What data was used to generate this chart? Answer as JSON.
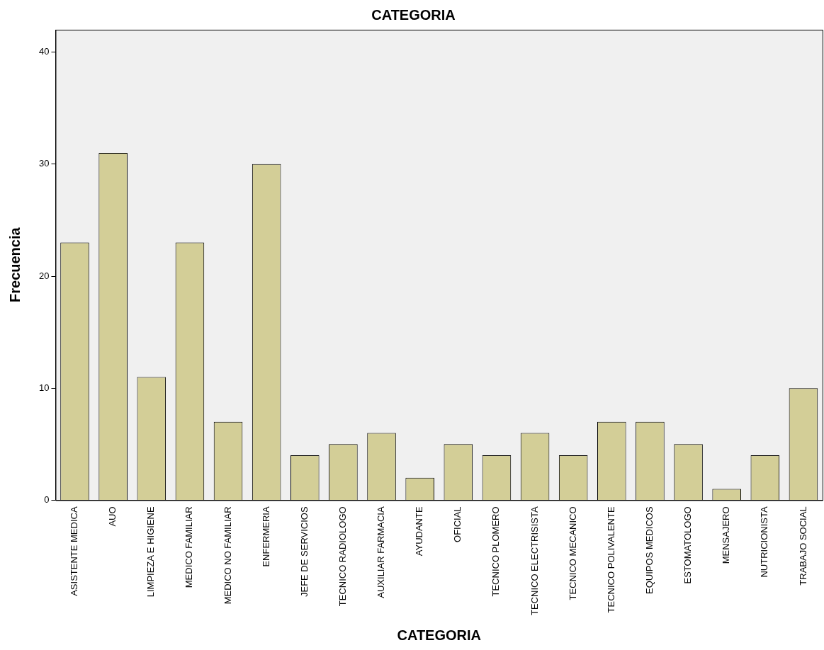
{
  "chart_data": {
    "type": "bar",
    "title": "CATEGORIA",
    "xlabel": "CATEGORIA",
    "ylabel": "Frecuencia",
    "categories": [
      "ASISTENTE MEDICA",
      "AUO",
      "LIMPIEZA E HIGIENE",
      "MEDICO FAMILIAR",
      "MEDICO NO FAMILIAR",
      "ENFERMERIA",
      "JEFE DE SERVICIOS",
      "TECNICO RADIOLOGO",
      "AUXILIAR FARMACIA",
      "AYUDANTE",
      "OFICIAL",
      "TECNICO PLOMERO",
      "TECNICO ELECTRISISTA",
      "TECNICO MECANICO",
      "TECNICO POLIVALENTE",
      "EQUIPOS MEDICOS",
      "ESTOMATOLOGO",
      "MENSAJERO",
      "NUTRICIONISTA",
      "TRABAJO SOCIAL"
    ],
    "values": [
      23,
      31,
      11,
      23,
      7,
      30,
      4,
      5,
      6,
      2,
      5,
      4,
      6,
      4,
      7,
      7,
      5,
      1,
      4,
      10
    ],
    "color": "#d3ce97",
    "ylim": [
      0,
      42
    ],
    "yticks": [
      0,
      10,
      20,
      30,
      40
    ],
    "grid": false,
    "legend": false
  }
}
